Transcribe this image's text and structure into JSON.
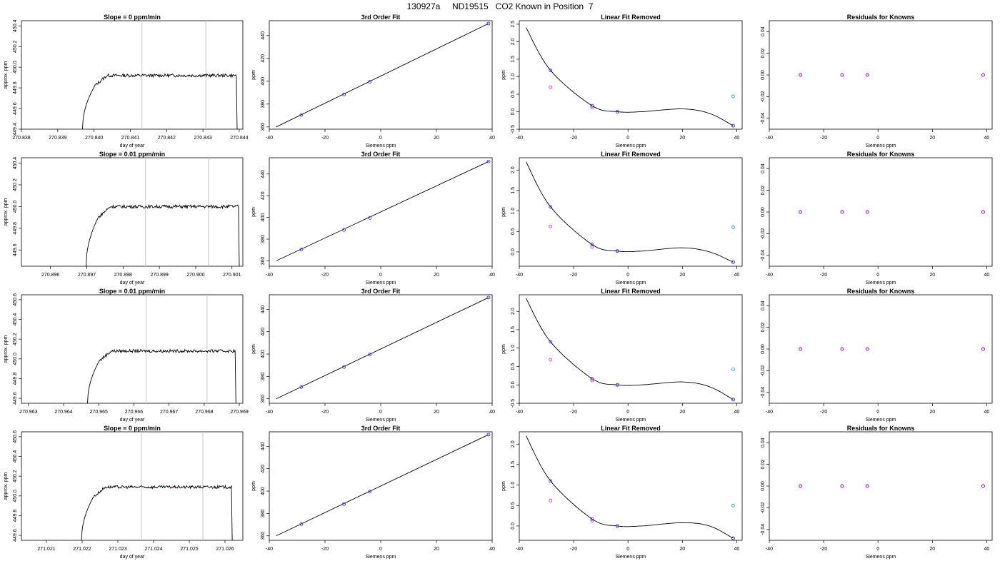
{
  "title": "130927a     ND19515   CO2 Known in Position  7",
  "colors": {
    "trace": "#000000",
    "vline": "#c8c8c8",
    "known": "#3a3adc",
    "magenta": "#c83cc8",
    "cyan": "#1ea0dc",
    "residual": "#7800c8"
  },
  "chart_data": [
    {
      "row": 0,
      "panels": [
        {
          "type": "line",
          "title": "Slope =  0  ppm/min",
          "xlabel": "day of year",
          "ylabel": "approx. ppm",
          "xlim": [
            270.838,
            270.8441
          ],
          "ylim": [
            449.4,
            450.45
          ],
          "xticks": [
            "270.838",
            "270.839",
            "270.840",
            "270.841",
            "270.842",
            "270.843",
            "270.844"
          ],
          "yticks": [
            "449.4",
            "449.6",
            "449.8",
            "450.0",
            "450.2",
            "450.4"
          ],
          "vlines": [
            270.84132,
            270.84308
          ],
          "trace": {
            "x0": 270.83968,
            "x1": 270.84392,
            "base": 449.92,
            "drop_end": 270.84395
          }
        },
        {
          "type": "scatter",
          "title": "3rd Order Fit",
          "xlabel": "Siemens ppm",
          "ylabel": "ppm",
          "xlim": [
            -40,
            40
          ],
          "ylim": [
            358,
            453
          ],
          "xticks": [
            "-40",
            "-20",
            "0",
            "20",
            "40"
          ],
          "yticks": [
            "360",
            "380",
            "400",
            "420",
            "440"
          ],
          "fit_line": [
            [
              -37.5,
              360.0
            ],
            [
              38.7,
              450.5
            ]
          ],
          "points": [
            [
              -28.5,
              370.4
            ],
            [
              -13.2,
              388.4
            ],
            [
              -3.9,
              399.5
            ],
            [
              38.7,
              450.5
            ]
          ]
        },
        {
          "type": "scatter",
          "title": "Linear Fit Removed",
          "xlabel": "Siemens ppm",
          "ylabel": "ppm",
          "xlim": [
            -40,
            42
          ],
          "ylim": [
            -0.5,
            2.6
          ],
          "xticks": [
            "-40",
            "-20",
            "0",
            "20",
            "40"
          ],
          "yticks": [
            "-0.5",
            "0.0",
            "0.5",
            "1.0",
            "1.5",
            "2.0",
            "2.5"
          ],
          "curve_fit": [
            [
              -37.5,
              2.4
            ],
            [
              -28.5,
              1.18
            ],
            [
              -13.2,
              0.17
            ],
            [
              -3.9,
              0.0
            ],
            [
              5,
              0.0
            ],
            [
              20,
              0.08
            ],
            [
              30,
              -0.05
            ],
            [
              38.7,
              -0.4
            ]
          ],
          "points_known": [
            [
              -28.5,
              1.18
            ],
            [
              -13.2,
              0.17
            ],
            [
              -3.9,
              0.0
            ],
            [
              38.7,
              -0.4
            ]
          ],
          "points_magenta": [
            [
              -28.5,
              0.7
            ],
            [
              -13.2,
              0.12
            ],
            [
              -3.9,
              0.0
            ],
            [
              38.7,
              -0.4
            ]
          ],
          "points_cyan": [
            [
              38.7,
              0.44
            ]
          ]
        },
        {
          "type": "scatter",
          "title": "Residuals for Knowns",
          "xlabel": "Siemens ppm",
          "ylabel": "",
          "xlim": [
            -40,
            42
          ],
          "ylim": [
            -0.05,
            0.05
          ],
          "xticks": [
            "-40",
            "-20",
            "0",
            "20",
            "40"
          ],
          "yticks": [
            "-0.04",
            "-0.02",
            "0.00",
            "0.02",
            "0.04"
          ],
          "points": [
            [
              -28.5,
              0.0
            ],
            [
              -13.2,
              0.0
            ],
            [
              -3.9,
              0.0
            ],
            [
              38.7,
              0.0
            ]
          ]
        }
      ]
    },
    {
      "row": 1,
      "panels": [
        {
          "type": "line",
          "title": "Slope =  0.01  ppm/min",
          "xlabel": "day of year",
          "ylabel": "approx. ppm",
          "xlim": [
            270.8952,
            270.9013
          ],
          "ylim": [
            449.45,
            450.45
          ],
          "xticks": [
            "270.896",
            "270.897",
            "270.898",
            "270.899",
            "270.900",
            "270.901"
          ],
          "yticks": [
            "449.6",
            "449.8",
            "450.0",
            "450.2",
            "450.4"
          ],
          "vlines": [
            270.89862,
            270.90035
          ],
          "trace": {
            "x0": 270.89698,
            "x1": 270.90118,
            "base": 450.0,
            "drop_end": 270.90121
          }
        },
        {
          "type": "scatter",
          "title": "3rd Order Fit",
          "xlabel": "Siemens ppm",
          "ylabel": "ppm",
          "xlim": [
            -40,
            40
          ],
          "ylim": [
            355,
            455
          ],
          "xticks": [
            "-40",
            "-20",
            "0",
            "20",
            "40"
          ],
          "yticks": [
            "360",
            "380",
            "400",
            "420",
            "440"
          ],
          "fit_line": [
            [
              -37.5,
              360.0
            ],
            [
              38.7,
              451.5
            ]
          ],
          "points": [
            [
              -28.5,
              370.4
            ],
            [
              -13.2,
              388.4
            ],
            [
              -3.9,
              399.5
            ],
            [
              38.7,
              451.5
            ]
          ]
        },
        {
          "type": "scatter",
          "title": "Linear Fit Removed",
          "xlabel": "Siemens ppm",
          "ylabel": "ppm",
          "xlim": [
            -40,
            42
          ],
          "ylim": [
            -0.35,
            2.3
          ],
          "xticks": [
            "-40",
            "-20",
            "0",
            "20",
            "40"
          ],
          "yticks": [
            "0.0",
            "0.5",
            "1.0",
            "1.5",
            "2.0"
          ],
          "curve_fit": [
            [
              -37.5,
              2.2
            ],
            [
              -28.5,
              1.1
            ],
            [
              -13.2,
              0.18
            ],
            [
              -3.9,
              0.02
            ],
            [
              5,
              0.02
            ],
            [
              20,
              0.1
            ],
            [
              30,
              0.0
            ],
            [
              38.7,
              -0.25
            ]
          ],
          "points_known": [
            [
              -28.5,
              1.1
            ],
            [
              -13.2,
              0.18
            ],
            [
              -3.9,
              0.02
            ],
            [
              38.7,
              -0.25
            ]
          ],
          "points_magenta": [
            [
              -28.5,
              0.62
            ],
            [
              -13.2,
              0.12
            ],
            [
              -3.9,
              0.02
            ],
            [
              38.7,
              -0.25
            ]
          ],
          "points_cyan": [
            [
              38.7,
              0.6
            ]
          ]
        },
        {
          "type": "scatter",
          "title": "Residuals for Knowns",
          "xlabel": "Siemens ppm",
          "ylabel": "",
          "xlim": [
            -40,
            42
          ],
          "ylim": [
            -0.05,
            0.05
          ],
          "xticks": [
            "-40",
            "-20",
            "0",
            "20",
            "40"
          ],
          "yticks": [
            "-0.04",
            "-0.02",
            "0.00",
            "0.02",
            "0.04"
          ],
          "points": [
            [
              -28.5,
              0.0
            ],
            [
              -13.2,
              0.0
            ],
            [
              -3.9,
              0.0
            ],
            [
              38.7,
              0.0
            ]
          ]
        }
      ]
    },
    {
      "row": 2,
      "panels": [
        {
          "type": "line",
          "title": "Slope =  0.01  ppm/min",
          "xlabel": "day of year",
          "ylabel": "approx. ppm",
          "xlim": [
            270.9628,
            270.9691
          ],
          "ylim": [
            449.55,
            450.65
          ],
          "xticks": [
            "270.963",
            "270.964",
            "270.965",
            "270.966",
            "270.967",
            "270.968",
            "270.969"
          ],
          "yticks": [
            "449.6",
            "449.8",
            "450.0",
            "450.2",
            "450.4",
            "450.6"
          ],
          "vlines": [
            270.96635,
            270.96808
          ],
          "trace": {
            "x0": 270.96468,
            "x1": 270.96888,
            "base": 450.08,
            "drop_end": 270.96891
          }
        },
        {
          "type": "scatter",
          "title": "3rd Order Fit",
          "xlabel": "Siemens ppm",
          "ylabel": "ppm",
          "xlim": [
            -40,
            40
          ],
          "ylim": [
            356,
            453
          ],
          "xticks": [
            "-40",
            "-20",
            "0",
            "20",
            "40"
          ],
          "yticks": [
            "360",
            "380",
            "400",
            "420",
            "440"
          ],
          "fit_line": [
            [
              -37.5,
              360.0
            ],
            [
              38.7,
              450.5
            ]
          ],
          "points": [
            [
              -28.5,
              370.4
            ],
            [
              -13.2,
              388.4
            ],
            [
              -3.9,
              399.5
            ],
            [
              38.7,
              450.5
            ]
          ]
        },
        {
          "type": "scatter",
          "title": "Linear Fit Removed",
          "xlabel": "Siemens ppm",
          "ylabel": "ppm",
          "xlim": [
            -40,
            42
          ],
          "ylim": [
            -0.5,
            2.45
          ],
          "xticks": [
            "-40",
            "-20",
            "0",
            "20",
            "40"
          ],
          "yticks": [
            "-0.5",
            "0.0",
            "0.5",
            "1.0",
            "1.5",
            "2.0"
          ],
          "curve_fit": [
            [
              -37.5,
              2.35
            ],
            [
              -28.5,
              1.17
            ],
            [
              -13.2,
              0.17
            ],
            [
              -3.9,
              0.0
            ],
            [
              5,
              0.0
            ],
            [
              20,
              0.08
            ],
            [
              30,
              -0.05
            ],
            [
              38.7,
              -0.4
            ]
          ],
          "points_known": [
            [
              -28.5,
              1.17
            ],
            [
              -13.2,
              0.17
            ],
            [
              -3.9,
              0.0
            ],
            [
              38.7,
              -0.4
            ]
          ],
          "points_magenta": [
            [
              -28.5,
              0.68
            ],
            [
              -13.2,
              0.12
            ],
            [
              -3.9,
              0.0
            ],
            [
              38.7,
              -0.4
            ]
          ],
          "points_cyan": [
            [
              38.7,
              0.42
            ]
          ]
        },
        {
          "type": "scatter",
          "title": "Residuals for Knowns",
          "xlabel": "Siemens ppm",
          "ylabel": "",
          "xlim": [
            -40,
            42
          ],
          "ylim": [
            -0.05,
            0.05
          ],
          "xticks": [
            "-40",
            "-20",
            "0",
            "20",
            "40"
          ],
          "yticks": [
            "-0.04",
            "-0.02",
            "0.00",
            "0.02",
            "0.04"
          ],
          "points": [
            [
              -28.5,
              0.0
            ],
            [
              -13.2,
              0.0
            ],
            [
              -3.9,
              0.0
            ],
            [
              38.7,
              0.0
            ]
          ]
        }
      ]
    },
    {
      "row": 3,
      "panels": [
        {
          "type": "line",
          "title": "Slope =  0  ppm/min",
          "xlabel": "day of year",
          "ylabel": "approx. ppm",
          "xlim": [
            271.0203,
            271.0265
          ],
          "ylim": [
            449.55,
            450.65
          ],
          "xticks": [
            "271.021",
            "271.022",
            "271.023",
            "271.024",
            "271.025",
            "271.026"
          ],
          "yticks": [
            "449.6",
            "449.8",
            "450.0",
            "450.2",
            "450.4",
            "450.6"
          ],
          "vlines": [
            271.02366,
            271.02538
          ],
          "trace": {
            "x0": 271.02198,
            "x1": 271.02618,
            "base": 450.09,
            "drop_end": 271.02621
          }
        },
        {
          "type": "scatter",
          "title": "3rd Order Fit",
          "xlabel": "Siemens ppm",
          "ylabel": "ppm",
          "xlim": [
            -40,
            40
          ],
          "ylim": [
            356,
            453
          ],
          "xticks": [
            "-40",
            "-20",
            "0",
            "20",
            "40"
          ],
          "yticks": [
            "360",
            "380",
            "400",
            "420",
            "440"
          ],
          "fit_line": [
            [
              -37.5,
              360.0
            ],
            [
              38.7,
              450.5
            ]
          ],
          "points": [
            [
              -28.5,
              370.4
            ],
            [
              -13.2,
              388.4
            ],
            [
              -3.9,
              399.5
            ],
            [
              38.7,
              450.5
            ]
          ]
        },
        {
          "type": "scatter",
          "title": "Linear Fit Removed",
          "xlabel": "Siemens ppm",
          "ylabel": "ppm",
          "xlim": [
            -40,
            42
          ],
          "ylim": [
            -0.35,
            2.3
          ],
          "xticks": [
            "-40",
            "-20",
            "0",
            "20",
            "40"
          ],
          "yticks": [
            "0.0",
            "0.5",
            "1.0",
            "1.5",
            "2.0"
          ],
          "curve_fit": [
            [
              -37.5,
              2.2
            ],
            [
              -28.5,
              1.1
            ],
            [
              -13.2,
              0.17
            ],
            [
              -3.9,
              0.0
            ],
            [
              5,
              0.0
            ],
            [
              20,
              0.08
            ],
            [
              30,
              0.0
            ],
            [
              38.7,
              -0.3
            ]
          ],
          "points_known": [
            [
              -28.5,
              1.1
            ],
            [
              -13.2,
              0.17
            ],
            [
              -3.9,
              0.0
            ],
            [
              38.7,
              -0.3
            ]
          ],
          "points_magenta": [
            [
              -28.5,
              0.62
            ],
            [
              -13.2,
              0.12
            ],
            [
              -3.9,
              0.0
            ],
            [
              38.7,
              -0.3
            ]
          ],
          "points_cyan": [
            [
              38.7,
              0.5
            ]
          ]
        },
        {
          "type": "scatter",
          "title": "Residuals for Knowns",
          "xlabel": "Siemens ppm",
          "ylabel": "",
          "xlim": [
            -40,
            42
          ],
          "ylim": [
            -0.05,
            0.05
          ],
          "xticks": [
            "-40",
            "-20",
            "0",
            "20",
            "40"
          ],
          "yticks": [
            "-0.04",
            "-0.02",
            "0.00",
            "0.02",
            "0.04"
          ],
          "points": [
            [
              -28.5,
              0.0
            ],
            [
              -13.2,
              0.0
            ],
            [
              -3.9,
              0.0
            ],
            [
              38.7,
              0.0
            ]
          ]
        }
      ]
    }
  ]
}
